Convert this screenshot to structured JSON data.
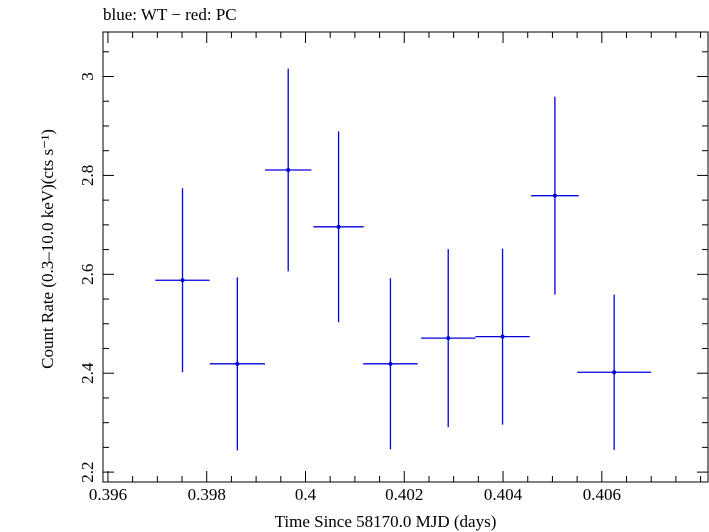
{
  "chart_data": {
    "type": "scatter",
    "title": "blue: WT − red: PC",
    "xlabel": "Time Since 58170.0 MJD (days)",
    "ylabel": "Count Rate (0.3–10.0 keV)(cts s⁻¹)",
    "xlim": [
      0.3959,
      0.40815
    ],
    "ylim": [
      2.18,
      3.09
    ],
    "x_ticks": [
      0.396,
      0.398,
      0.4,
      0.402,
      0.404,
      0.406
    ],
    "x_tick_labels": [
      "0.396",
      "0.398",
      "0.4",
      "0.402",
      "0.404",
      "0.406"
    ],
    "y_ticks": [
      2.2,
      2.4,
      2.6,
      2.8,
      3.0
    ],
    "y_tick_labels": [
      "2.2",
      "2.4",
      "2.6",
      "2.8",
      "3"
    ],
    "grid": false,
    "series": [
      {
        "color": "#0000dd",
        "points": [
          {
            "x": 0.39751,
            "y": 2.588,
            "xerr": 0.00055,
            "yerr": 0.186
          },
          {
            "x": 0.39862,
            "y": 2.419,
            "xerr": 0.00056,
            "yerr": 0.175
          },
          {
            "x": 0.39965,
            "y": 2.811,
            "xerr": 0.00047,
            "yerr": 0.205
          },
          {
            "x": 0.40067,
            "y": 2.696,
            "xerr": 0.00051,
            "yerr": 0.193
          },
          {
            "x": 0.40172,
            "y": 2.419,
            "xerr": 0.00055,
            "yerr": 0.173
          },
          {
            "x": 0.40289,
            "y": 2.471,
            "xerr": 0.00055,
            "yerr": 0.18
          },
          {
            "x": 0.40399,
            "y": 2.474,
            "xerr": 0.00055,
            "yerr": 0.178
          },
          {
            "x": 0.40505,
            "y": 2.759,
            "xerr": 0.00048,
            "yerr": 0.2
          },
          {
            "x": 0.40625,
            "y": 2.402,
            "xerr": 0.00075,
            "yerr": 0.157
          }
        ]
      }
    ]
  }
}
